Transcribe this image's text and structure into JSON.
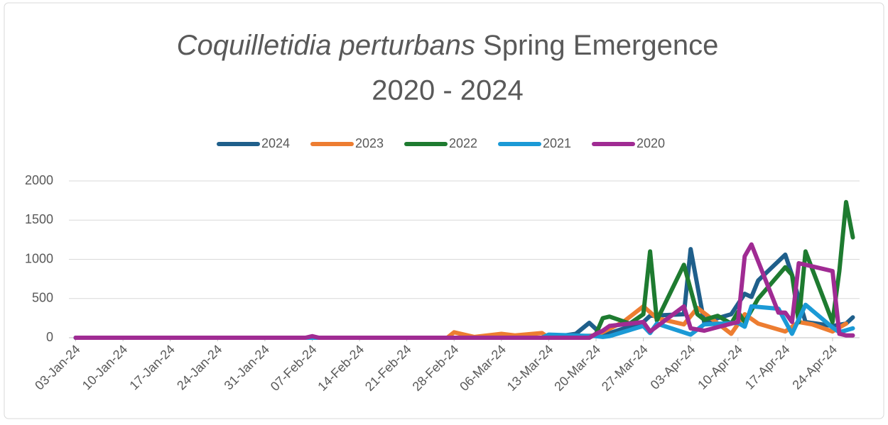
{
  "chart_data": {
    "type": "line",
    "title": {
      "italic": "Coquilletidia perturbans",
      "rest": "Spring Emergence",
      "line2": "2020 - 2024"
    },
    "xlim": [
      "2024-01-02",
      "2024-04-28"
    ],
    "xticks": [
      {
        "value": "2024-01-03",
        "label": "03-Jan-24"
      },
      {
        "value": "2024-01-10",
        "label": "10-Jan-24"
      },
      {
        "value": "2024-01-17",
        "label": "17-Jan-24"
      },
      {
        "value": "2024-01-24",
        "label": "24-Jan-24"
      },
      {
        "value": "2024-01-31",
        "label": "31-Jan-24"
      },
      {
        "value": "2024-02-07",
        "label": "07-Feb-24"
      },
      {
        "value": "2024-02-14",
        "label": "14-Feb-24"
      },
      {
        "value": "2024-02-21",
        "label": "21-Feb-24"
      },
      {
        "value": "2024-02-28",
        "label": "28-Feb-24"
      },
      {
        "value": "2024-03-06",
        "label": "06-Mar-24"
      },
      {
        "value": "2024-03-13",
        "label": "13-Mar-24"
      },
      {
        "value": "2024-03-20",
        "label": "20-Mar-24"
      },
      {
        "value": "2024-03-27",
        "label": "27-Mar-24"
      },
      {
        "value": "2024-04-03",
        "label": "03-Apr-24"
      },
      {
        "value": "2024-04-10",
        "label": "10-Apr-24"
      },
      {
        "value": "2024-04-17",
        "label": "17-Apr-24"
      },
      {
        "value": "2024-04-24",
        "label": "24-Apr-24"
      }
    ],
    "ylim": [
      0,
      2000
    ],
    "yticks": [
      0,
      500,
      1000,
      1500,
      2000
    ],
    "grid": true,
    "legend": "top",
    "series": [
      {
        "name": "2024",
        "color": "#1f5f8b",
        "x": [
          "2024-01-03",
          "2024-03-13",
          "2024-03-17",
          "2024-03-19",
          "2024-03-21",
          "2024-03-27",
          "2024-03-28",
          "2024-04-02",
          "2024-04-03",
          "2024-04-05",
          "2024-04-09",
          "2024-04-11",
          "2024-04-12",
          "2024-04-13",
          "2024-04-17",
          "2024-04-18",
          "2024-04-20",
          "2024-04-24",
          "2024-04-26",
          "2024-04-27"
        ],
        "values": [
          0,
          0,
          50,
          190,
          30,
          200,
          280,
          300,
          1130,
          200,
          300,
          560,
          520,
          730,
          1060,
          800,
          200,
          150,
          180,
          260
        ]
      },
      {
        "name": "2023",
        "color": "#ed7d31",
        "x": [
          "2024-01-03",
          "2024-02-27",
          "2024-02-28",
          "2024-03-02",
          "2024-03-06",
          "2024-03-08",
          "2024-03-12",
          "2024-03-13",
          "2024-03-20",
          "2024-03-24",
          "2024-03-27",
          "2024-03-29",
          "2024-04-02",
          "2024-04-04",
          "2024-04-06",
          "2024-04-09",
          "2024-04-11",
          "2024-04-13",
          "2024-04-17",
          "2024-04-19",
          "2024-04-21",
          "2024-04-24",
          "2024-04-26"
        ],
        "values": [
          0,
          0,
          70,
          10,
          50,
          30,
          60,
          0,
          30,
          200,
          400,
          250,
          170,
          380,
          250,
          50,
          300,
          180,
          80,
          200,
          170,
          80,
          180
        ]
      },
      {
        "name": "2022",
        "color": "#1e7b30",
        "x": [
          "2024-01-03",
          "2024-03-19",
          "2024-03-20",
          "2024-03-21",
          "2024-03-22",
          "2024-03-25",
          "2024-03-27",
          "2024-03-28",
          "2024-03-29",
          "2024-04-02",
          "2024-04-04",
          "2024-04-05",
          "2024-04-07",
          "2024-04-09",
          "2024-04-10",
          "2024-04-11",
          "2024-04-13",
          "2024-04-17",
          "2024-04-18",
          "2024-04-19",
          "2024-04-20",
          "2024-04-24",
          "2024-04-25",
          "2024-04-26",
          "2024-04-27"
        ],
        "values": [
          0,
          0,
          50,
          250,
          270,
          180,
          300,
          1100,
          220,
          930,
          300,
          230,
          280,
          180,
          330,
          200,
          500,
          900,
          800,
          200,
          1100,
          200,
          850,
          1730,
          1280
        ]
      },
      {
        "name": "2021",
        "color": "#1b9ad6",
        "x": [
          "2024-01-03",
          "2024-03-12",
          "2024-03-13",
          "2024-03-20",
          "2024-03-21",
          "2024-03-22",
          "2024-03-27",
          "2024-03-28",
          "2024-03-29",
          "2024-04-03",
          "2024-04-05",
          "2024-04-10",
          "2024-04-11",
          "2024-04-12",
          "2024-04-16",
          "2024-04-18",
          "2024-04-20",
          "2024-04-24",
          "2024-04-25",
          "2024-04-27"
        ],
        "values": [
          0,
          0,
          40,
          20,
          10,
          20,
          150,
          60,
          180,
          40,
          170,
          190,
          140,
          400,
          370,
          50,
          420,
          130,
          70,
          120
        ]
      },
      {
        "name": "2020",
        "color": "#a02b93",
        "x": [
          "2024-01-03",
          "2024-02-06",
          "2024-02-07",
          "2024-02-08",
          "2024-03-19",
          "2024-03-20",
          "2024-03-21",
          "2024-03-22",
          "2024-03-27",
          "2024-03-28",
          "2024-04-02",
          "2024-04-03",
          "2024-04-05",
          "2024-04-09",
          "2024-04-10",
          "2024-04-11",
          "2024-04-12",
          "2024-04-16",
          "2024-04-17",
          "2024-04-18",
          "2024-04-19",
          "2024-04-24",
          "2024-04-25",
          "2024-04-26",
          "2024-04-27"
        ],
        "values": [
          0,
          0,
          20,
          0,
          0,
          50,
          90,
          150,
          200,
          80,
          400,
          120,
          90,
          180,
          200,
          1040,
          1190,
          320,
          320,
          200,
          950,
          850,
          50,
          30,
          30
        ]
      }
    ]
  }
}
